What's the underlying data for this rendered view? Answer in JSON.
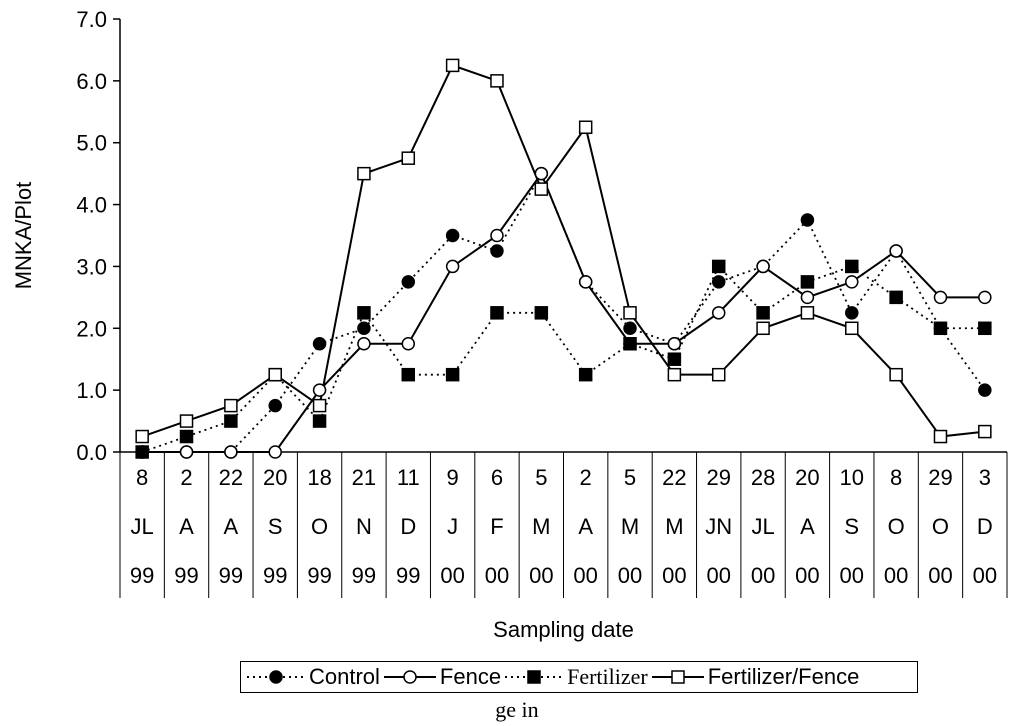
{
  "chart_data": {
    "type": "line",
    "ylabel": "MNKA/Plot",
    "xlabel": "Sampling date",
    "ylim": [
      0,
      7
    ],
    "yticks": [
      "0.0",
      "1.0",
      "2.0",
      "3.0",
      "4.0",
      "5.0",
      "6.0",
      "7.0"
    ],
    "grid": false,
    "legend_position": "bottom",
    "categories": [
      [
        "8",
        "JL",
        "99"
      ],
      [
        "2",
        "A",
        "99"
      ],
      [
        "22",
        "A",
        "99"
      ],
      [
        "20",
        "S",
        "99"
      ],
      [
        "18",
        "O",
        "99"
      ],
      [
        "21",
        "N",
        "99"
      ],
      [
        "11",
        "D",
        "99"
      ],
      [
        "9",
        "J",
        "00"
      ],
      [
        "6",
        "F",
        "00"
      ],
      [
        "5",
        "M",
        "00"
      ],
      [
        "2",
        "A",
        "00"
      ],
      [
        "5",
        "M",
        "00"
      ],
      [
        "22",
        "M",
        "00"
      ],
      [
        "29",
        "JN",
        "00"
      ],
      [
        "28",
        "JL",
        "00"
      ],
      [
        "20",
        "A",
        "00"
      ],
      [
        "10",
        "S",
        "00"
      ],
      [
        "8",
        "O",
        "00"
      ],
      [
        "29",
        "O",
        "00"
      ],
      [
        "3",
        "D",
        "00"
      ]
    ],
    "series": [
      {
        "name": "Control",
        "line": "dotted",
        "marker": "filled-circle",
        "values": [
          0,
          0,
          0,
          0.75,
          1.75,
          2.0,
          2.75,
          3.5,
          3.25,
          4.5,
          2.75,
          2.0,
          1.75,
          2.75,
          3.0,
          3.75,
          2.25,
          3.25,
          2.0,
          1.0
        ]
      },
      {
        "name": "Fence",
        "line": "solid",
        "marker": "open-circle",
        "values": [
          0,
          0,
          0,
          0,
          1.0,
          1.75,
          1.75,
          3.0,
          3.5,
          4.5,
          2.75,
          1.75,
          1.75,
          2.25,
          3.0,
          2.5,
          2.75,
          3.25,
          2.5,
          2.5
        ]
      },
      {
        "name": "Fertilizer",
        "line": "dotted",
        "marker": "filled-square",
        "values": [
          0,
          0.25,
          0.5,
          1.25,
          0.5,
          2.25,
          1.25,
          1.25,
          2.25,
          2.25,
          1.25,
          1.75,
          1.5,
          3.0,
          2.25,
          2.75,
          3.0,
          2.5,
          2.0,
          2.0
        ]
      },
      {
        "name": "Fertilizer/Fence",
        "line": "solid",
        "marker": "open-square",
        "values": [
          0.25,
          0.5,
          0.75,
          1.25,
          0.75,
          4.5,
          4.75,
          6.25,
          6.0,
          4.25,
          5.25,
          2.25,
          1.25,
          1.25,
          2.0,
          2.25,
          2.0,
          1.25,
          0.25,
          0.33
        ]
      }
    ]
  },
  "caption": "ge in"
}
